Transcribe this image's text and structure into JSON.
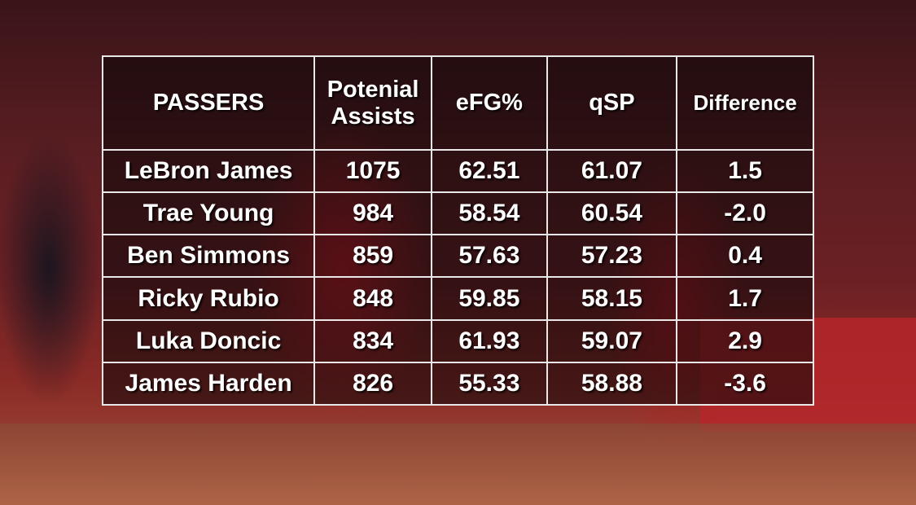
{
  "table": {
    "header": [
      "PASSERS",
      "Potenial Assists",
      "eFG%",
      "qSP",
      "Difference"
    ],
    "rows": [
      [
        "LeBron James",
        "1075",
        "62.51",
        "61.07",
        "1.5"
      ],
      [
        "Trae Young",
        "984",
        "58.54",
        "60.54",
        "-2.0"
      ],
      [
        "Ben Simmons",
        "859",
        "57.63",
        "57.23",
        "0.4"
      ],
      [
        "Ricky Rubio",
        "848",
        "59.85",
        "58.15",
        "1.7"
      ],
      [
        "Luka Doncic",
        "834",
        "61.93",
        "59.07",
        "2.9"
      ],
      [
        "James Harden",
        "826",
        "55.33",
        "58.88",
        "-3.6"
      ]
    ]
  }
}
